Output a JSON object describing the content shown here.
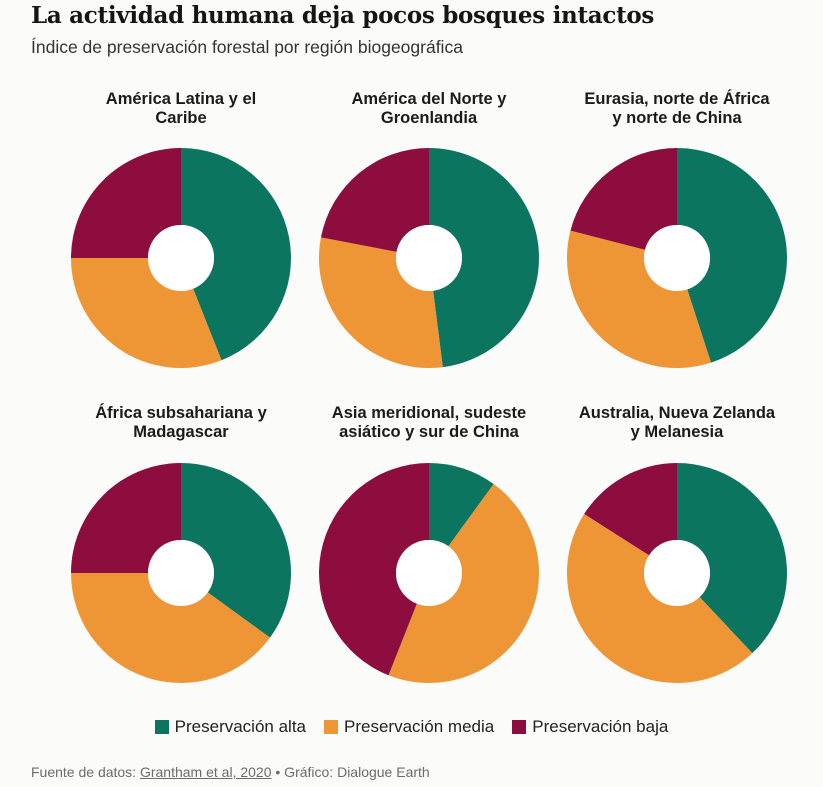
{
  "title": "La actividad humana deja pocos bosques intactos",
  "subtitle": "Índice de preservación forestal por región biogeográfica",
  "colors": {
    "alta": "#0b7560",
    "media": "#ee9536",
    "baja": "#8c0d3e"
  },
  "legend": {
    "alta": "Preservación alta",
    "media": "Preservación media",
    "baja": "Preservación baja"
  },
  "footer": {
    "prefix": "Fuente de datos: ",
    "link": "Grantham et al, 2020",
    "suffix": " • Gráfico: Dialogue Earth"
  },
  "chart_data": [
    {
      "type": "pie",
      "title_lines": [
        "América Latina y el",
        "Caribe"
      ],
      "series_order": [
        "alta",
        "media",
        "baja"
      ],
      "values": [
        44,
        31,
        25
      ]
    },
    {
      "type": "pie",
      "title_lines": [
        "América del Norte y",
        "Groenlandia"
      ],
      "series_order": [
        "alta",
        "media",
        "baja"
      ],
      "values": [
        48,
        30,
        22
      ]
    },
    {
      "type": "pie",
      "title_lines": [
        "Eurasia, norte de África",
        "y norte de China"
      ],
      "series_order": [
        "alta",
        "media",
        "baja"
      ],
      "values": [
        45,
        34,
        21
      ]
    },
    {
      "type": "pie",
      "title_lines": [
        "África subsahariana y",
        "Madagascar"
      ],
      "series_order": [
        "alta",
        "media",
        "baja"
      ],
      "values": [
        35,
        40,
        25
      ]
    },
    {
      "type": "pie",
      "title_lines": [
        "Asia meridional, sudeste",
        "asiático y sur de China"
      ],
      "series_order": [
        "alta",
        "media",
        "baja"
      ],
      "values": [
        10,
        46,
        44
      ]
    },
    {
      "type": "pie",
      "title_lines": [
        "Australia, Nueva Zelanda",
        "y Melanesia"
      ],
      "series_order": [
        "alta",
        "media",
        "baja"
      ],
      "values": [
        38,
        46,
        16
      ]
    }
  ]
}
